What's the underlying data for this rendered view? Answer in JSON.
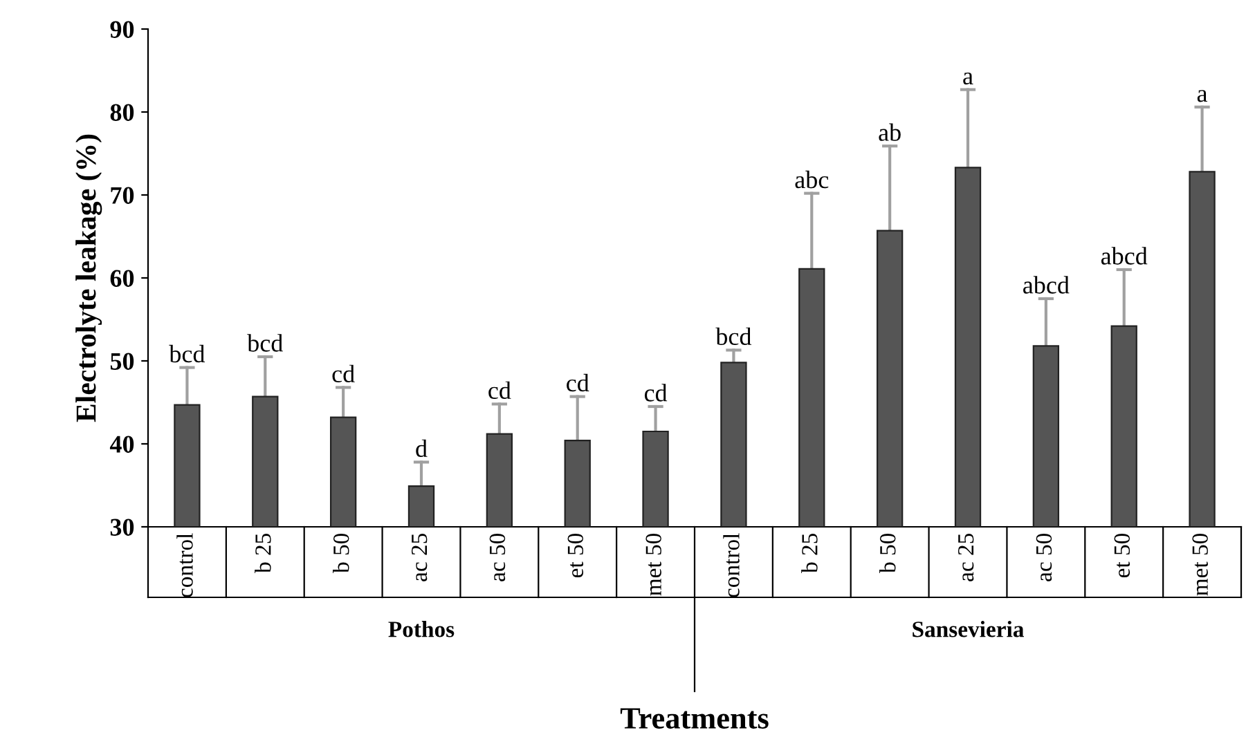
{
  "chart_data": {
    "type": "bar",
    "xlabel": "Treatments",
    "ylabel": "Electrolyte leakage (%)",
    "categories": [
      "control",
      "b 25",
      "b 50",
      "ac 25",
      "ac 50",
      "et 50",
      "met 50",
      "control",
      "b 25",
      "b 50",
      "ac 25",
      "ac 50",
      "et 50",
      "met 50"
    ],
    "values": [
      44.7,
      45.7,
      43.2,
      34.9,
      41.2,
      40.4,
      41.5,
      49.8,
      61.1,
      65.7,
      73.3,
      51.8,
      54.2,
      72.8
    ],
    "errors": [
      [
        44.7,
        49.2
      ],
      [
        45.7,
        50.5
      ],
      [
        43.2,
        46.8
      ],
      [
        34.9,
        37.8
      ],
      [
        41.2,
        44.8
      ],
      [
        40.4,
        45.7
      ],
      [
        41.5,
        44.5
      ],
      [
        49.8,
        51.3
      ],
      [
        61.1,
        70.2
      ],
      [
        65.7,
        75.9
      ],
      [
        73.3,
        82.7
      ],
      [
        51.8,
        57.5
      ],
      [
        54.2,
        61.0
      ],
      [
        72.8,
        80.6
      ]
    ],
    "color": "#555555",
    "ylim": [
      30,
      90
    ],
    "yticks": [
      30,
      40,
      50,
      60,
      70,
      80,
      90
    ],
    "grid": false,
    "annotations": [
      "bcd",
      "bcd",
      "cd",
      "d",
      "cd",
      "cd",
      "cd",
      "bcd",
      "abc",
      "ab",
      "a",
      "abcd",
      "abcd",
      "a",
      "Pothos",
      "Sansevieria"
    ]
  }
}
